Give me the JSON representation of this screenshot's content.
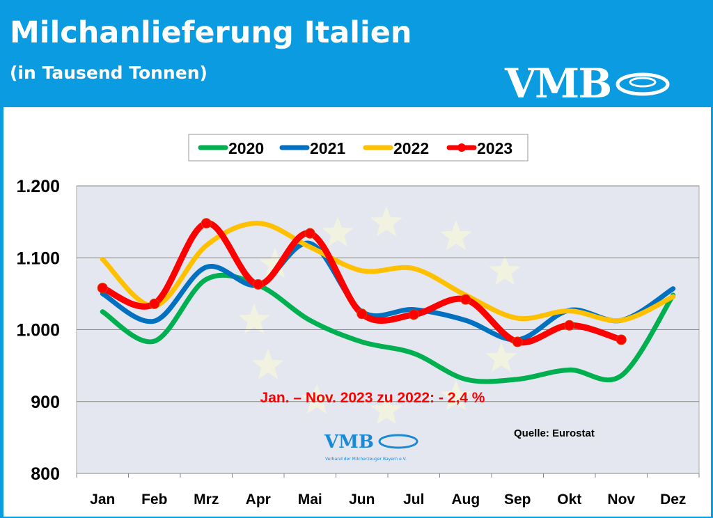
{
  "header": {
    "title": "Milchanlieferung Italien",
    "subtitle": "(in Tausend Tonnen)",
    "logo": "VMB"
  },
  "chart_data": {
    "type": "line",
    "categories": [
      "Jan",
      "Feb",
      "Mrz",
      "Apr",
      "Mai",
      "Jun",
      "Jul",
      "Aug",
      "Sep",
      "Okt",
      "Nov",
      "Dez"
    ],
    "ylim": [
      800,
      1200
    ],
    "yticks": [
      "800",
      "900",
      "1.000",
      "1.100",
      "1.200"
    ],
    "ytick_values": [
      800,
      900,
      1000,
      1100,
      1200
    ],
    "grid": true,
    "legend_placement": "top-center",
    "series": [
      {
        "name": "2020",
        "color": "#00b050",
        "values": [
          1025,
          984,
          1070,
          1062,
          1013,
          983,
          967,
          931,
          931,
          944,
          936,
          1048
        ]
      },
      {
        "name": "2021",
        "color": "#0070c0",
        "values": [
          1050,
          1012,
          1087,
          1062,
          1120,
          1025,
          1028,
          1013,
          986,
          1027,
          1013,
          1057
        ]
      },
      {
        "name": "2022",
        "color": "#ffc000",
        "values": [
          1098,
          1033,
          1117,
          1148,
          1115,
          1082,
          1085,
          1048,
          1016,
          1026,
          1013,
          1046
        ]
      },
      {
        "name": "2023",
        "color": "#ff0000",
        "markers": true,
        "values": [
          1058,
          1036,
          1148,
          1063,
          1134,
          1022,
          1021,
          1042,
          983,
          1006,
          986,
          null
        ]
      }
    ],
    "annotation": "Jan. – Nov. 2023 zu 2022: - 2,4 %",
    "source": "Quelle: Eurostat",
    "watermark_logo": "VMB",
    "watermark_text": "Verband der Milcherzeuger Bayern e.V."
  }
}
